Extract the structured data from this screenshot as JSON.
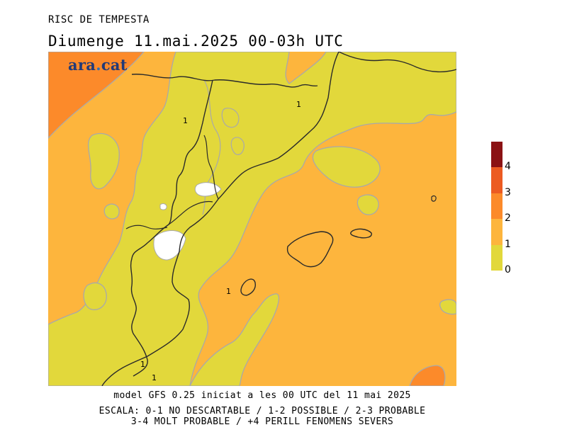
{
  "header": {
    "product": "RISC DE TEMPESTA",
    "valid_time": "Diumenge  11.mai.2025 00-03h UTC"
  },
  "map": {
    "brand_name": "ara",
    "brand_dot": ".",
    "brand_tld": "cat",
    "contour_labels": [
      "1",
      "1",
      "1",
      "1",
      "1"
    ]
  },
  "footer": {
    "model_line": "model GFS 0.25 iniciat a les 00 UTC del 11 mai 2025",
    "scale_line_1": "ESCALA: 0-1 NO DESCARTABLE / 1-2 POSSIBLE / 2-3 PROBABLE",
    "scale_line_2": "3-4 MOLT PROBABLE / +4 PERILL FENOMENS SEVERS"
  },
  "legend": {
    "bands": [
      {
        "label": "0",
        "color": "#e2d83b"
      },
      {
        "label": "1",
        "color": "#fdb53d"
      },
      {
        "label": "2",
        "color": "#fc8a2a"
      },
      {
        "label": "3",
        "color": "#ec5b22"
      },
      {
        "label": "4",
        "color": "#8b1214"
      }
    ]
  },
  "colors": {
    "level_0_1": "#e2d83b",
    "level_1_2": "#fdb53d",
    "level_2_3": "#fc8a2a",
    "contour": "#a9a9a9",
    "coastline": "#2a2a2a"
  }
}
